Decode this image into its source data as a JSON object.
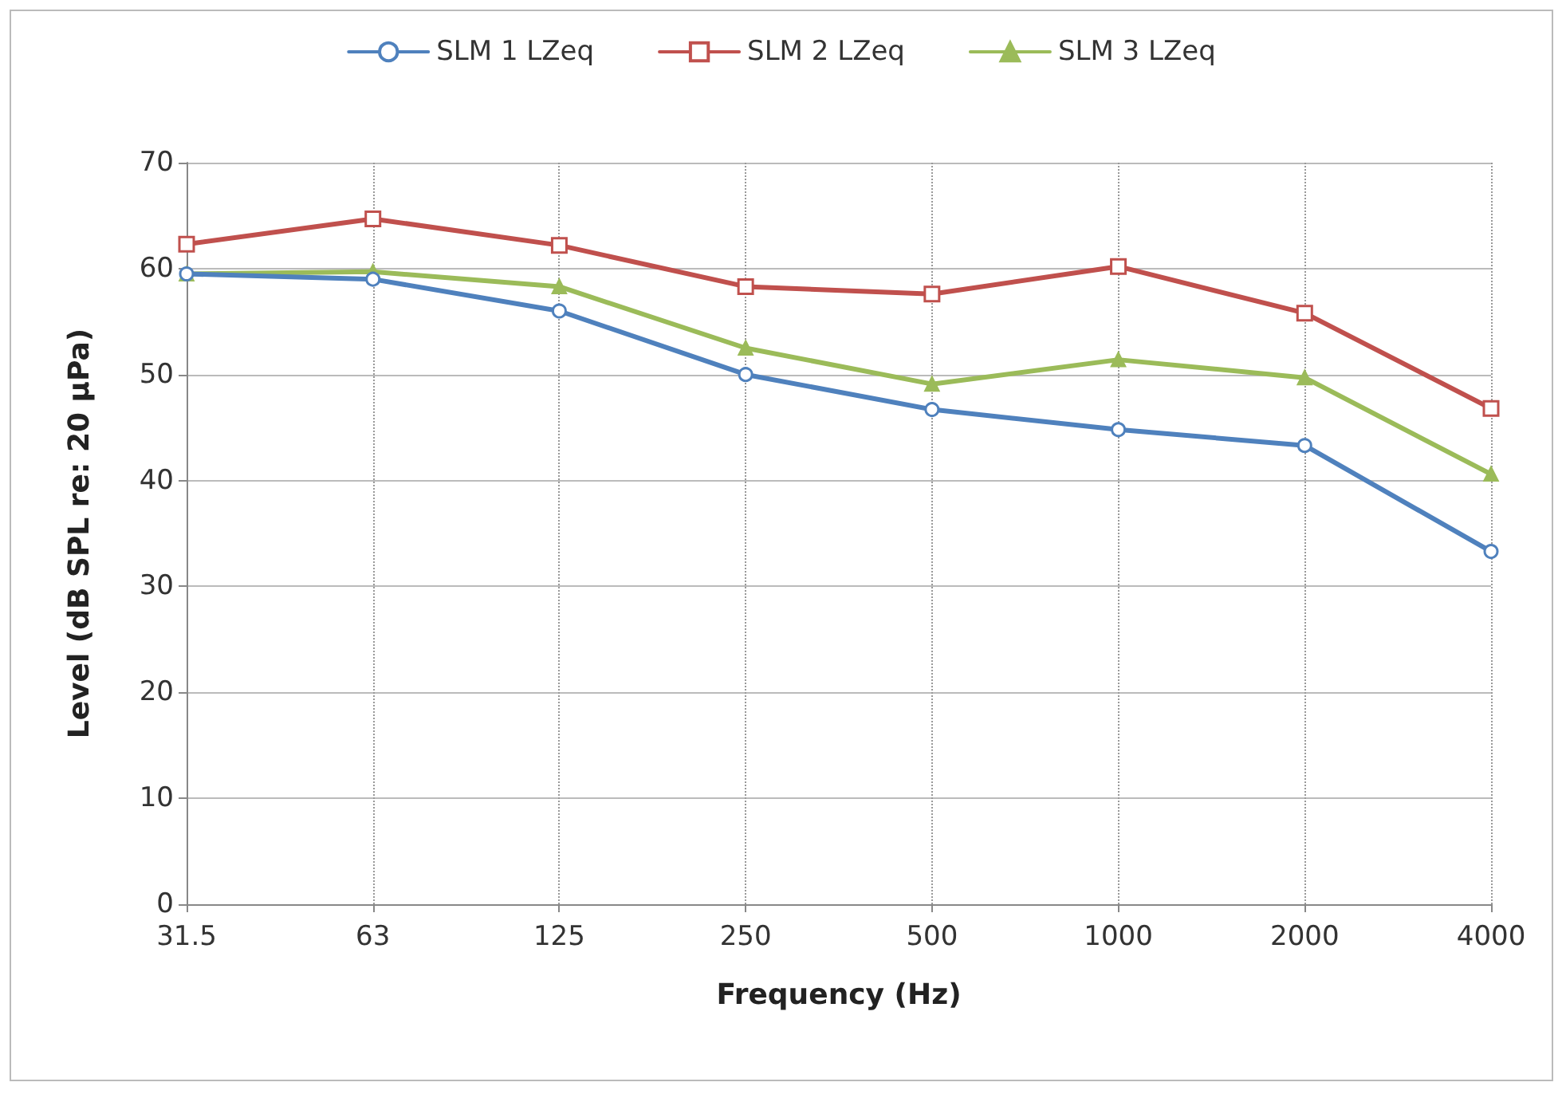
{
  "chart_data": {
    "type": "line",
    "xlabel": "Frequency (Hz)",
    "ylabel": "Level (dB SPL re: 20 µPa)",
    "categories": [
      "31.5",
      "63",
      "125",
      "250",
      "500",
      "1000",
      "2000",
      "4000"
    ],
    "series": [
      {
        "name": "SLM 1 LZeq",
        "color": "#4f81bd",
        "marker": "circle",
        "values": [
          59.5,
          59,
          56,
          50,
          46.7,
          44.8,
          43.3,
          33.3
        ]
      },
      {
        "name": "SLM 2 LZeq",
        "color": "#c0504d",
        "marker": "square",
        "values": [
          62.3,
          64.7,
          62.2,
          58.3,
          57.6,
          60.2,
          55.8,
          46.8
        ]
      },
      {
        "name": "SLM 3 LZeq",
        "color": "#9bbb59",
        "marker": "triangle",
        "values": [
          59.5,
          59.7,
          58.3,
          52.5,
          49.1,
          51.4,
          49.7,
          40.6
        ]
      }
    ],
    "ylim": [
      0,
      70
    ],
    "yticks": [
      0,
      10,
      20,
      30,
      40,
      50,
      60,
      70
    ],
    "grid": true,
    "legend": "top"
  }
}
